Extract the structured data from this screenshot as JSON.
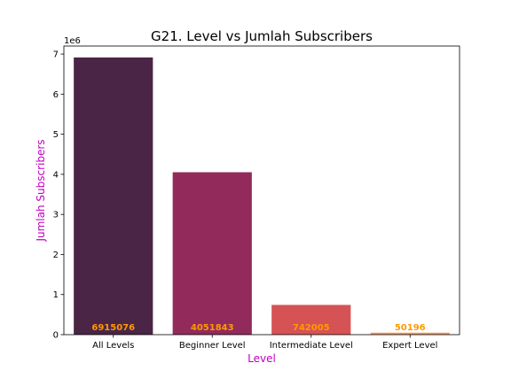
{
  "chart_data": {
    "type": "bar",
    "title": "G21. Level vs Jumlah Subscribers",
    "xlabel": "Level",
    "ylabel": "Jumlah Subscribers",
    "categories": [
      "All Levels",
      "Beginner Level",
      "Intermediate Level",
      "Expert Level"
    ],
    "values": [
      6915076,
      4051843,
      742005,
      50196
    ],
    "bar_colors": [
      "#4a2545",
      "#922b5c",
      "#d65355",
      "#f09a6b"
    ],
    "label_color": "#ff9900",
    "axis_label_color": "#c000c0",
    "ylim": [
      0,
      7200000
    ],
    "yticks": [
      0,
      1,
      2,
      3,
      4,
      5,
      6,
      7
    ],
    "y_offset_text": "1e6",
    "grid": false,
    "legend": "none"
  }
}
